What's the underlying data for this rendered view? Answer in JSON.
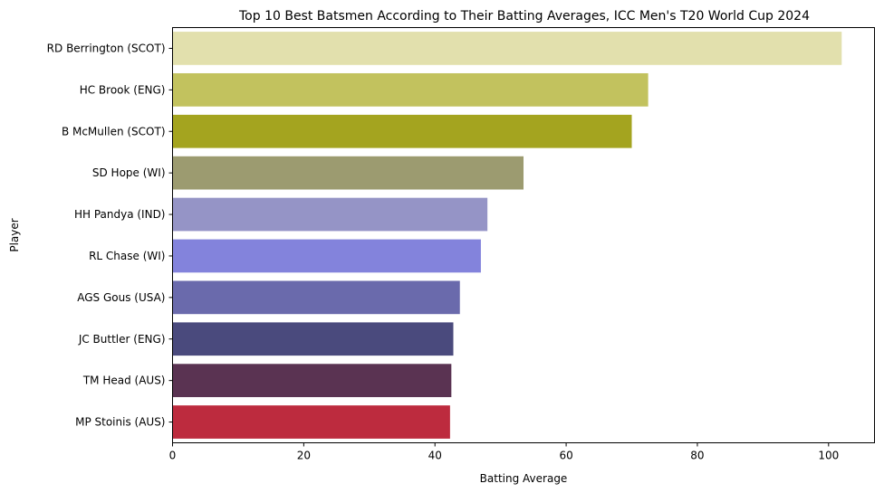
{
  "chart_data": {
    "type": "bar",
    "orientation": "horizontal",
    "title": "Top 10 Best Batsmen According to Their Batting Averages, ICC Men's T20 World Cup 2024",
    "xlabel": "Batting Average",
    "ylabel": "Player",
    "xlim": [
      0,
      107
    ],
    "xticks": [
      0,
      20,
      40,
      60,
      80,
      100
    ],
    "grid": false,
    "categories": [
      "RD Berrington (SCOT)",
      "HC Brook (ENG)",
      "B McMullen (SCOT)",
      "SD Hope (WI)",
      "HH Pandya (IND)",
      "RL Chase (WI)",
      "AGS Gous (USA)",
      "JC Buttler (ENG)",
      "TM Head (AUS)",
      "MP Stoinis (AUS)"
    ],
    "values": [
      102.0,
      72.5,
      70.0,
      53.5,
      48.0,
      47.0,
      43.8,
      42.8,
      42.5,
      42.3
    ],
    "colors": [
      "#e2e0ad",
      "#c2c25e",
      "#a4a41f",
      "#9c9b70",
      "#9594c6",
      "#8383dc",
      "#6a6aac",
      "#4a4a7d",
      "#5a3352",
      "#bd2b3e"
    ]
  }
}
